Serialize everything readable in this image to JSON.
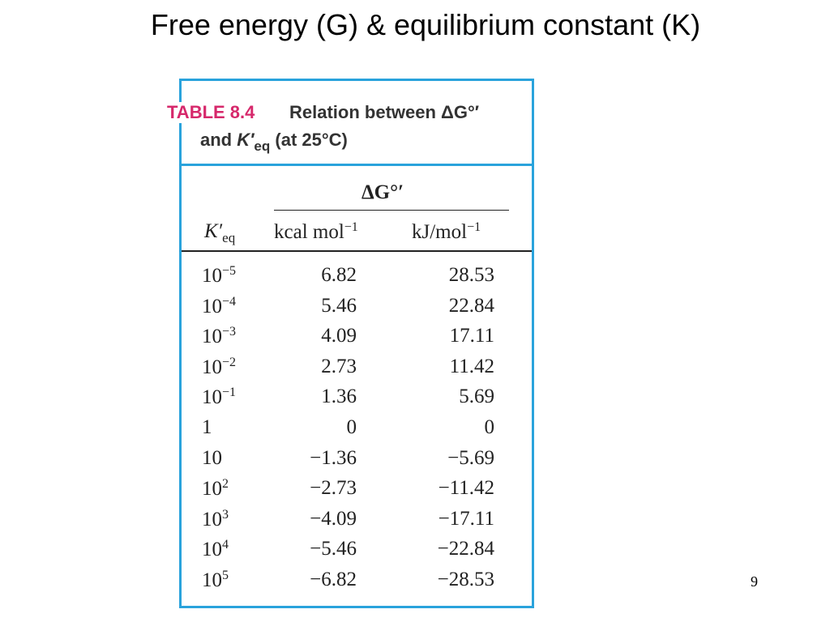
{
  "title": "Free energy (G) & equilibrium constant (K)",
  "page_number": "9",
  "table": {
    "label": "TABLE 8.4",
    "caption": {
      "line1": "Relation between ΔG°′",
      "line2_prefix": "and",
      "line2_symbol": "K′",
      "line2_subscript": "eq",
      "line2_suffix": "(at 25°C)"
    },
    "header": {
      "group": "ΔG°′",
      "k_symbol": "K′",
      "k_subscript": "eq",
      "kcal": {
        "text": "kcal mol",
        "sup": "−1"
      },
      "kj": {
        "text": "kJ/mol",
        "sup": "−1"
      }
    },
    "rows": [
      {
        "k_base": "10",
        "k_exp": "−5",
        "kcal": "6.82",
        "kj": "28.53"
      },
      {
        "k_base": "10",
        "k_exp": "−4",
        "kcal": "5.46",
        "kj": "22.84"
      },
      {
        "k_base": "10",
        "k_exp": "−3",
        "kcal": "4.09",
        "kj": "17.11"
      },
      {
        "k_base": "10",
        "k_exp": "−2",
        "kcal": "2.73",
        "kj": "11.42"
      },
      {
        "k_base": "10",
        "k_exp": "−1",
        "kcal": "1.36",
        "kj": "5.69"
      },
      {
        "k_base": "1",
        "kcal": "0",
        "kj": "0"
      },
      {
        "k_base": "10",
        "kcal": "−1.36",
        "kj": "−5.69"
      },
      {
        "k_base": "10",
        "k_exp": "2",
        "kcal": "−2.73",
        "kj": "−11.42"
      },
      {
        "k_base": "10",
        "k_exp": "3",
        "kcal": "−4.09",
        "kj": "−17.11"
      },
      {
        "k_base": "10",
        "k_exp": "4",
        "kcal": "−5.46",
        "kj": "−22.84"
      },
      {
        "k_base": "10",
        "k_exp": "5",
        "kcal": "−6.82",
        "kj": "−28.53"
      }
    ]
  }
}
